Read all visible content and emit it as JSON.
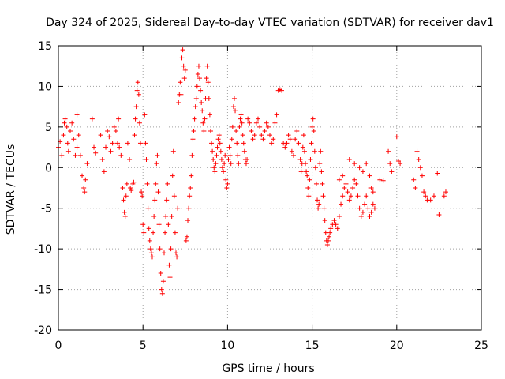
{
  "chart_data": {
    "type": "scatter",
    "title": "Day 324 of 2025, Sidereal Day-to-day VTEC variation (SDTVAR) for receiver dav1",
    "xlabel": "GPS time / hours",
    "ylabel": "SDTVAR / TECUs",
    "xlim": [
      0,
      25
    ],
    "ylim": [
      -20,
      15
    ],
    "xticks": [
      0,
      5,
      10,
      15,
      20,
      25
    ],
    "yticks": [
      -20,
      -15,
      -10,
      -5,
      0,
      5,
      10,
      15
    ],
    "xtick_labels": [
      "0",
      "5",
      "10",
      "15",
      "20",
      "25"
    ],
    "ytick_labels": [
      "-20",
      "-15",
      "-10",
      "-5",
      "0",
      "5",
      "10",
      "15"
    ],
    "grid": true,
    "marker": "+",
    "color": "#ff0000",
    "series": [
      {
        "name": "dav1",
        "points": [
          [
            0.0,
            2.5
          ],
          [
            0.1,
            3.2
          ],
          [
            0.2,
            1.5
          ],
          [
            0.3,
            4.0
          ],
          [
            0.35,
            5.5
          ],
          [
            0.4,
            6.0
          ],
          [
            0.5,
            5.0
          ],
          [
            0.55,
            3.0
          ],
          [
            0.6,
            2.0
          ],
          [
            0.7,
            4.5
          ],
          [
            0.8,
            5.5
          ],
          [
            0.9,
            3.5
          ],
          [
            1.0,
            1.5
          ],
          [
            1.1,
            2.5
          ],
          [
            1.1,
            6.5
          ],
          [
            1.2,
            4.0
          ],
          [
            1.3,
            1.5
          ],
          [
            1.4,
            -1.0
          ],
          [
            1.5,
            -2.5
          ],
          [
            1.55,
            -3.0
          ],
          [
            1.6,
            -1.5
          ],
          [
            1.7,
            0.5
          ],
          [
            2.0,
            6.0
          ],
          [
            2.1,
            2.5
          ],
          [
            2.2,
            1.8
          ],
          [
            2.5,
            4.0
          ],
          [
            2.6,
            1.0
          ],
          [
            2.7,
            -0.5
          ],
          [
            2.8,
            2.5
          ],
          [
            2.9,
            4.5
          ],
          [
            3.0,
            3.8
          ],
          [
            3.1,
            2.0
          ],
          [
            3.2,
            3.0
          ],
          [
            3.3,
            5.0
          ],
          [
            3.4,
            4.5
          ],
          [
            3.5,
            3.0
          ],
          [
            3.55,
            6.0
          ],
          [
            3.6,
            2.5
          ],
          [
            3.7,
            1.5
          ],
          [
            3.8,
            -2.5
          ],
          [
            3.85,
            -4.0
          ],
          [
            3.9,
            -5.5
          ],
          [
            3.95,
            -6.0
          ],
          [
            4.0,
            -3.5
          ],
          [
            4.05,
            -2.0
          ],
          [
            4.1,
            3.0
          ],
          [
            4.2,
            1.0
          ],
          [
            4.25,
            -2.5
          ],
          [
            4.3,
            -2.8
          ],
          [
            4.4,
            -2.0
          ],
          [
            4.45,
            -1.8
          ],
          [
            4.5,
            4.0
          ],
          [
            4.55,
            6.0
          ],
          [
            4.6,
            7.5
          ],
          [
            4.65,
            9.5
          ],
          [
            4.7,
            10.5
          ],
          [
            4.75,
            9.0
          ],
          [
            4.8,
            5.5
          ],
          [
            4.85,
            3.0
          ],
          [
            4.9,
            -3.0
          ],
          [
            4.95,
            -3.5
          ],
          [
            5.0,
            -7.0
          ],
          [
            5.05,
            -8.0
          ],
          [
            5.1,
            6.5
          ],
          [
            5.15,
            3.0
          ],
          [
            5.2,
            1.0
          ],
          [
            5.25,
            -2.0
          ],
          [
            5.3,
            -5.0
          ],
          [
            5.35,
            -7.5
          ],
          [
            5.4,
            -9.0
          ],
          [
            5.45,
            -10.0
          ],
          [
            5.5,
            -10.5
          ],
          [
            5.55,
            -11.0
          ],
          [
            5.6,
            -8.0
          ],
          [
            5.65,
            -6.0
          ],
          [
            5.7,
            -4.0
          ],
          [
            5.75,
            -2.0
          ],
          [
            5.8,
            0.5
          ],
          [
            5.85,
            1.5
          ],
          [
            5.9,
            -3.0
          ],
          [
            5.95,
            -7.0
          ],
          [
            6.0,
            -10.0
          ],
          [
            6.05,
            -13.0
          ],
          [
            6.1,
            -15.0
          ],
          [
            6.15,
            -15.5
          ],
          [
            6.2,
            -14.0
          ],
          [
            6.25,
            -10.5
          ],
          [
            6.3,
            -8.0
          ],
          [
            6.35,
            -6.0
          ],
          [
            6.4,
            -4.0
          ],
          [
            6.45,
            -2.0
          ],
          [
            6.5,
            -7.0
          ],
          [
            6.55,
            -12.0
          ],
          [
            6.6,
            -13.5
          ],
          [
            6.65,
            -10.0
          ],
          [
            6.7,
            -6.0
          ],
          [
            6.75,
            -1.0
          ],
          [
            6.8,
            2.0
          ],
          [
            6.85,
            -3.5
          ],
          [
            6.9,
            -8.0
          ],
          [
            6.95,
            -10.5
          ],
          [
            7.0,
            -11.0
          ],
          [
            7.05,
            -5.0
          ],
          [
            7.1,
            8.0
          ],
          [
            7.15,
            9.0
          ],
          [
            7.2,
            10.5
          ],
          [
            7.25,
            9.0
          ],
          [
            7.3,
            13.5
          ],
          [
            7.35,
            14.5
          ],
          [
            7.4,
            12.5
          ],
          [
            7.45,
            11.0
          ],
          [
            7.5,
            12.0
          ],
          [
            7.55,
            -9.0
          ],
          [
            7.6,
            -8.5
          ],
          [
            7.65,
            -6.5
          ],
          [
            7.7,
            -5.0
          ],
          [
            7.75,
            -3.5
          ],
          [
            7.8,
            -2.5
          ],
          [
            7.85,
            -1.0
          ],
          [
            7.9,
            1.5
          ],
          [
            7.95,
            3.5
          ],
          [
            8.0,
            4.5
          ],
          [
            8.05,
            6.0
          ],
          [
            8.1,
            7.5
          ],
          [
            8.15,
            8.5
          ],
          [
            8.2,
            10.0
          ],
          [
            8.25,
            11.5
          ],
          [
            8.3,
            12.5
          ],
          [
            8.35,
            11.0
          ],
          [
            8.4,
            9.5
          ],
          [
            8.45,
            8.0
          ],
          [
            8.5,
            7.0
          ],
          [
            8.55,
            5.5
          ],
          [
            8.6,
            4.5
          ],
          [
            8.65,
            6.0
          ],
          [
            8.7,
            8.5
          ],
          [
            8.75,
            11.0
          ],
          [
            8.8,
            12.5
          ],
          [
            8.85,
            10.5
          ],
          [
            8.9,
            8.5
          ],
          [
            8.95,
            6.5
          ],
          [
            9.0,
            4.5
          ],
          [
            9.05,
            3.0
          ],
          [
            9.1,
            2.0
          ],
          [
            9.15,
            1.0
          ],
          [
            9.2,
            0.0
          ],
          [
            9.25,
            -0.5
          ],
          [
            9.3,
            0.5
          ],
          [
            9.35,
            1.5
          ],
          [
            9.4,
            2.5
          ],
          [
            9.45,
            3.5
          ],
          [
            9.5,
            4.0
          ],
          [
            9.55,
            3.0
          ],
          [
            9.6,
            2.0
          ],
          [
            9.65,
            1.0
          ],
          [
            9.7,
            0.0
          ],
          [
            9.75,
            -0.5
          ],
          [
            9.8,
            0.5
          ],
          [
            9.85,
            1.5
          ],
          [
            9.9,
            -1.5
          ],
          [
            9.95,
            -2.5
          ],
          [
            10.0,
            -2.0
          ],
          [
            10.05,
            1.0
          ],
          [
            10.1,
            2.5
          ],
          [
            10.15,
            1.5
          ],
          [
            10.2,
            0.5
          ],
          [
            10.25,
            3.5
          ],
          [
            10.3,
            5.0
          ],
          [
            10.35,
            7.5
          ],
          [
            10.4,
            8.5
          ],
          [
            10.45,
            7.0
          ],
          [
            10.5,
            4.5
          ],
          [
            10.55,
            3.0
          ],
          [
            10.6,
            1.5
          ],
          [
            10.65,
            0.5
          ],
          [
            10.7,
            5.0
          ],
          [
            10.75,
            6.0
          ],
          [
            10.8,
            6.5
          ],
          [
            10.85,
            5.5
          ],
          [
            10.9,
            4.0
          ],
          [
            10.95,
            3.0
          ],
          [
            11.0,
            2.0
          ],
          [
            11.05,
            1.0
          ],
          [
            11.1,
            0.5
          ],
          [
            11.15,
            1.0
          ],
          [
            11.2,
            6.0
          ],
          [
            11.3,
            5.5
          ],
          [
            11.4,
            4.5
          ],
          [
            11.5,
            3.5
          ],
          [
            11.6,
            4.0
          ],
          [
            11.7,
            5.5
          ],
          [
            11.8,
            6.0
          ],
          [
            11.9,
            5.0
          ],
          [
            12.0,
            4.0
          ],
          [
            12.1,
            3.5
          ],
          [
            12.2,
            4.5
          ],
          [
            12.3,
            5.5
          ],
          [
            12.4,
            5.0
          ],
          [
            12.5,
            4.0
          ],
          [
            12.6,
            3.0
          ],
          [
            12.7,
            3.5
          ],
          [
            12.8,
            5.5
          ],
          [
            12.9,
            6.5
          ],
          [
            13.0,
            9.5
          ],
          [
            13.1,
            9.6
          ],
          [
            13.2,
            9.5
          ],
          [
            13.3,
            3.0
          ],
          [
            13.4,
            2.5
          ],
          [
            13.5,
            3.0
          ],
          [
            13.6,
            4.0
          ],
          [
            13.7,
            3.5
          ],
          [
            13.8,
            2.0
          ],
          [
            13.9,
            1.5
          ],
          [
            14.0,
            3.5
          ],
          [
            14.1,
            4.5
          ],
          [
            14.2,
            3.0
          ],
          [
            14.3,
            1.0
          ],
          [
            14.35,
            -0.5
          ],
          [
            14.4,
            0.5
          ],
          [
            14.45,
            2.5
          ],
          [
            14.5,
            4.0
          ],
          [
            14.55,
            2.0
          ],
          [
            14.6,
            0.5
          ],
          [
            14.65,
            -0.5
          ],
          [
            14.7,
            -1.0
          ],
          [
            14.75,
            -2.5
          ],
          [
            14.8,
            -3.5
          ],
          [
            14.85,
            -1.5
          ],
          [
            14.9,
            1.0
          ],
          [
            14.95,
            3.0
          ],
          [
            15.0,
            5.0
          ],
          [
            15.05,
            6.0
          ],
          [
            15.1,
            4.5
          ],
          [
            15.15,
            2.0
          ],
          [
            15.2,
            0.0
          ],
          [
            15.25,
            -2.0
          ],
          [
            15.3,
            -4.0
          ],
          [
            15.35,
            -5.0
          ],
          [
            15.4,
            -4.5
          ],
          [
            15.45,
            0.5
          ],
          [
            15.5,
            2.0
          ],
          [
            15.55,
            -0.5
          ],
          [
            15.6,
            -2.0
          ],
          [
            15.65,
            -3.5
          ],
          [
            15.7,
            -5.0
          ],
          [
            15.75,
            -6.5
          ],
          [
            15.8,
            -8.0
          ],
          [
            15.85,
            -9.0
          ],
          [
            15.9,
            -9.5
          ],
          [
            15.95,
            -9.0
          ],
          [
            16.0,
            -8.5
          ],
          [
            16.05,
            -8.0
          ],
          [
            16.1,
            -7.5
          ],
          [
            16.2,
            -7.0
          ],
          [
            16.3,
            -6.5
          ],
          [
            16.4,
            -7.0
          ],
          [
            16.5,
            -7.5
          ],
          [
            16.6,
            -6.0
          ],
          [
            16.7,
            -4.5
          ],
          [
            16.8,
            -3.5
          ],
          [
            16.9,
            -2.5
          ],
          [
            17.0,
            -2.0
          ],
          [
            17.1,
            -3.0
          ],
          [
            17.2,
            -4.0
          ],
          [
            17.3,
            -3.5
          ],
          [
            17.4,
            -2.5
          ],
          [
            17.5,
            -1.5
          ],
          [
            17.6,
            -2.0
          ],
          [
            17.7,
            -3.5
          ],
          [
            17.8,
            -5.0
          ],
          [
            17.9,
            -6.0
          ],
          [
            18.0,
            -5.5
          ],
          [
            18.1,
            -4.5
          ],
          [
            18.2,
            -3.5
          ],
          [
            18.3,
            -5.0
          ],
          [
            18.4,
            -6.0
          ],
          [
            18.5,
            -5.5
          ],
          [
            18.6,
            -4.5
          ],
          [
            18.7,
            -5.0
          ],
          [
            16.6,
            -1.5
          ],
          [
            16.8,
            -1.0
          ],
          [
            17.2,
            1.0
          ],
          [
            17.5,
            0.5
          ],
          [
            17.8,
            0.0
          ],
          [
            18.0,
            -0.5
          ],
          [
            18.2,
            0.5
          ],
          [
            18.4,
            -1.0
          ],
          [
            18.5,
            -2.5
          ],
          [
            18.6,
            -3.0
          ],
          [
            19.0,
            -1.5
          ],
          [
            19.2,
            -1.6
          ],
          [
            19.5,
            2.0
          ],
          [
            19.6,
            0.5
          ],
          [
            19.7,
            -0.5
          ],
          [
            20.0,
            3.8
          ],
          [
            20.1,
            0.8
          ],
          [
            20.2,
            0.5
          ],
          [
            21.0,
            -1.5
          ],
          [
            21.1,
            -2.5
          ],
          [
            21.2,
            2.0
          ],
          [
            21.3,
            1.0
          ],
          [
            21.4,
            0.0
          ],
          [
            21.5,
            -1.0
          ],
          [
            21.6,
            -3.0
          ],
          [
            21.7,
            -3.5
          ],
          [
            21.8,
            -4.0
          ],
          [
            22.0,
            -4.0
          ],
          [
            22.2,
            -3.5
          ],
          [
            22.4,
            -0.7
          ],
          [
            22.5,
            -5.8
          ],
          [
            22.8,
            -3.5
          ],
          [
            22.9,
            -3.0
          ]
        ]
      }
    ]
  }
}
